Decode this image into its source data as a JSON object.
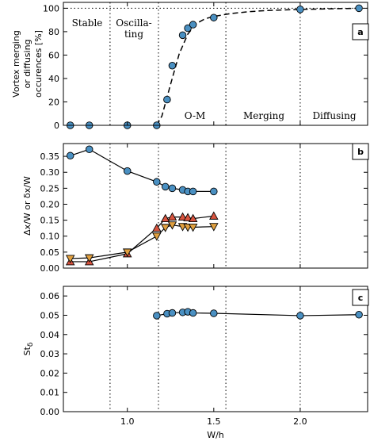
{
  "chart_data": [
    {
      "panel": "a",
      "type": "scatter",
      "ylabel": "Vortex merging\nor diffusing\noccurences [%]",
      "xlim": [
        0.63,
        2.39
      ],
      "ylim": [
        0,
        105
      ],
      "yticks": [
        0,
        20,
        40,
        60,
        80,
        100
      ],
      "grid": false,
      "series": [
        {
          "x": [
            0.67,
            0.78,
            1.0,
            1.17,
            1.23,
            1.26,
            1.32,
            1.35,
            1.38,
            1.5,
            2.0,
            2.34
          ],
          "y": [
            0,
            0,
            0,
            0,
            22,
            51,
            77,
            83,
            86,
            92,
            99,
            100
          ],
          "marker": "circle",
          "color": "#4a90c2"
        }
      ],
      "fit_curve": {
        "style": "dashed",
        "x": [
          1.17,
          1.2,
          1.25,
          1.3,
          1.35,
          1.4,
          1.45,
          1.5,
          1.6,
          1.7,
          1.8,
          1.9,
          2.0,
          2.34
        ],
        "y": [
          0,
          8,
          35,
          61,
          78,
          87,
          91,
          93,
          95.5,
          97,
          98,
          98.5,
          99,
          100
        ]
      },
      "reference_line": {
        "y": 100,
        "style": "dotted"
      },
      "dividers_x": [
        0.9,
        1.18,
        1.57,
        2.0
      ],
      "region_labels": [
        "Stable",
        "Oscilla-",
        "ting",
        "O-M",
        "Merging",
        "Diffusing"
      ]
    },
    {
      "panel": "b",
      "type": "line",
      "ylabel": "Δx/W or δx/W",
      "xlim": [
        0.63,
        2.39
      ],
      "ylim": [
        0,
        0.39
      ],
      "yticks": [
        0.0,
        0.05,
        0.1,
        0.15,
        0.2,
        0.25,
        0.3,
        0.35
      ],
      "grid": false,
      "dividers_x": [
        0.9,
        1.18,
        1.57,
        2.0
      ],
      "series": [
        {
          "x": [
            0.67,
            0.78,
            1.0,
            1.17,
            1.22,
            1.26,
            1.32,
            1.35,
            1.38,
            1.5
          ],
          "y": [
            0.352,
            0.372,
            0.304,
            0.27,
            0.255,
            0.25,
            0.245,
            0.24,
            0.24,
            0.24
          ],
          "marker": "circle",
          "color": "#4a90c2"
        },
        {
          "x": [
            0.67,
            0.78,
            1.0,
            1.17,
            1.22,
            1.26,
            1.32,
            1.35,
            1.38,
            1.5
          ],
          "y": [
            0.02,
            0.02,
            0.045,
            0.125,
            0.155,
            0.16,
            0.16,
            0.158,
            0.155,
            0.163
          ],
          "marker": "triangle-up",
          "color": "#d9543f"
        },
        {
          "x": [
            0.67,
            0.78,
            1.0,
            1.17,
            1.22,
            1.26,
            1.32,
            1.35,
            1.38,
            1.5
          ],
          "y": [
            0.03,
            0.032,
            0.05,
            0.1,
            0.127,
            0.135,
            0.13,
            0.128,
            0.128,
            0.13
          ],
          "marker": "triangle-down",
          "color": "#e0a040"
        }
      ]
    },
    {
      "panel": "c",
      "type": "line",
      "ylabel": "St",
      "ylabel_sub": "δ",
      "xlabel": "W/h",
      "xlim": [
        0.63,
        2.39
      ],
      "xticks": [
        1.0,
        1.5,
        2.0
      ],
      "ylim": [
        0,
        0.065
      ],
      "yticks": [
        0.0,
        0.01,
        0.02,
        0.03,
        0.04,
        0.05,
        0.06
      ],
      "grid": false,
      "dividers_x": [
        0.9,
        1.18,
        1.57,
        2.0
      ],
      "series": [
        {
          "x": [
            1.17,
            1.23,
            1.26,
            1.32,
            1.35,
            1.38,
            1.5,
            2.0,
            2.34
          ],
          "y": [
            0.0498,
            0.0508,
            0.0512,
            0.0515,
            0.0518,
            0.0512,
            0.051,
            0.0498,
            0.0503
          ],
          "marker": "circle",
          "color": "#4a90c2"
        }
      ]
    }
  ]
}
